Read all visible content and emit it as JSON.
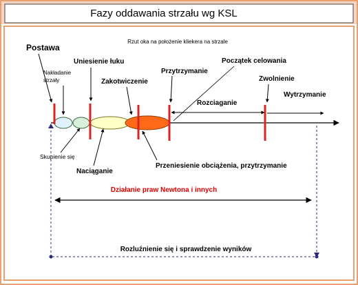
{
  "title": "Fazy oddawania strzału wg KSL",
  "subtitle": "Rzut oka na położenie kliekera na strzale",
  "labels": {
    "postawa": "Postawa",
    "nakladanie_line1": "Nakładanie",
    "nakladanie_line2": "strzały",
    "uniesienie": "Uniesienie łuku",
    "zakotwiczenie": "Zakotwiczenie",
    "przytrzymanie": "Przytrzymanie",
    "poczatek_celowania": "Początek celowania",
    "zwolnienie": "Zwolnienie",
    "rozciaganie": "Rozciaganie",
    "wytrzymanie": "Wytrzymanie",
    "skupienie": "Skupienie się",
    "naciaganie": "Naciąganie",
    "przeniesienie": "Przeniesienie obciążenia, przytrzymanie",
    "dzialanie": "Działanie praw Newtona i innych",
    "rozluznienie": "Rozluźnienie się i sprawdzenie wyników"
  },
  "colors": {
    "background": "#ffffff",
    "frame": "#e8a070",
    "title_bar": "#f5d4c4",
    "marker": "#dd2222",
    "ellipse_skupienie": "#dff2fb",
    "ellipse_nakladanie": "#d8f0dc",
    "ellipse_naciaganie": "#ffffc8",
    "ellipse_zakotwiczenie": "#ff6a18",
    "dashed_line": "#2a2a7a",
    "highlight_text": "#dd0000"
  }
}
